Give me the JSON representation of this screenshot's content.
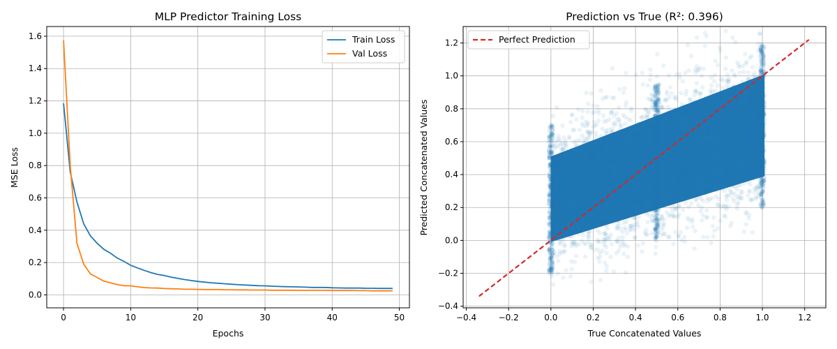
{
  "chart_data": [
    {
      "type": "line",
      "title": "MLP Predictor Training Loss",
      "xlabel": "Epochs",
      "ylabel": "MSE Loss",
      "xlim": [
        -2.5,
        51.5
      ],
      "ylim": [
        -0.08,
        1.66
      ],
      "xticks": [
        0,
        10,
        20,
        30,
        40,
        50
      ],
      "yticks": [
        0.0,
        0.2,
        0.4,
        0.6,
        0.8,
        1.0,
        1.2,
        1.4,
        1.6
      ],
      "grid": true,
      "legend_position": "top-right",
      "x": [
        0,
        1,
        2,
        3,
        4,
        5,
        6,
        7,
        8,
        9,
        10,
        11,
        12,
        13,
        14,
        15,
        16,
        17,
        18,
        19,
        20,
        21,
        22,
        23,
        24,
        25,
        26,
        27,
        28,
        29,
        30,
        31,
        32,
        33,
        34,
        35,
        36,
        37,
        38,
        39,
        40,
        41,
        42,
        43,
        44,
        45,
        46,
        47,
        48,
        49
      ],
      "series": [
        {
          "name": "Train Loss",
          "color": "#1f77b4",
          "values": [
            1.185,
            0.76,
            0.575,
            0.44,
            0.365,
            0.32,
            0.282,
            0.257,
            0.228,
            0.207,
            0.183,
            0.167,
            0.152,
            0.138,
            0.127,
            0.12,
            0.11,
            0.102,
            0.095,
            0.089,
            0.083,
            0.079,
            0.075,
            0.072,
            0.069,
            0.066,
            0.063,
            0.061,
            0.059,
            0.057,
            0.056,
            0.054,
            0.052,
            0.051,
            0.05,
            0.049,
            0.048,
            0.046,
            0.046,
            0.046,
            0.044,
            0.043,
            0.042,
            0.042,
            0.042,
            0.041,
            0.041,
            0.04,
            0.04,
            0.04
          ]
        },
        {
          "name": "Val Loss",
          "color": "#ff7f0e",
          "values": [
            1.575,
            0.8,
            0.32,
            0.19,
            0.13,
            0.108,
            0.085,
            0.074,
            0.064,
            0.057,
            0.056,
            0.05,
            0.045,
            0.043,
            0.042,
            0.039,
            0.038,
            0.037,
            0.035,
            0.035,
            0.034,
            0.033,
            0.033,
            0.033,
            0.032,
            0.032,
            0.031,
            0.031,
            0.03,
            0.03,
            0.03,
            0.029,
            0.029,
            0.029,
            0.029,
            0.028,
            0.028,
            0.028,
            0.028,
            0.028,
            0.027,
            0.027,
            0.027,
            0.027,
            0.026,
            0.026,
            0.025,
            0.025,
            0.025,
            0.025
          ]
        }
      ]
    },
    {
      "type": "scatter",
      "title": "Prediction vs True (R²: 0.396)",
      "xlabel": "True Concatenated Values",
      "ylabel": "Predicted Concatenated Values",
      "xlim": [
        -0.415,
        1.3
      ],
      "ylim": [
        -0.41,
        1.3
      ],
      "xticks": [
        -0.4,
        -0.2,
        0.0,
        0.2,
        0.4,
        0.6,
        0.8,
        1.0,
        1.2
      ],
      "yticks": [
        -0.4,
        -0.2,
        0.0,
        0.2,
        0.4,
        0.6,
        0.8,
        1.0,
        1.2
      ],
      "grid": true,
      "legend_position": "top-left",
      "scatter_color": "#1f77b4",
      "scatter_x_range": [
        0.0,
        1.01
      ],
      "scatter_pred_band_at_x0": [
        -0.15,
        0.65
      ],
      "scatter_pred_band_at_x1": [
        0.25,
        1.15
      ],
      "reference_line": {
        "name": "Perfect Prediction",
        "color": "#d62728",
        "style": "dashed",
        "x": [
          -0.34,
          1.22
        ],
        "y": [
          -0.34,
          1.22
        ]
      }
    }
  ]
}
